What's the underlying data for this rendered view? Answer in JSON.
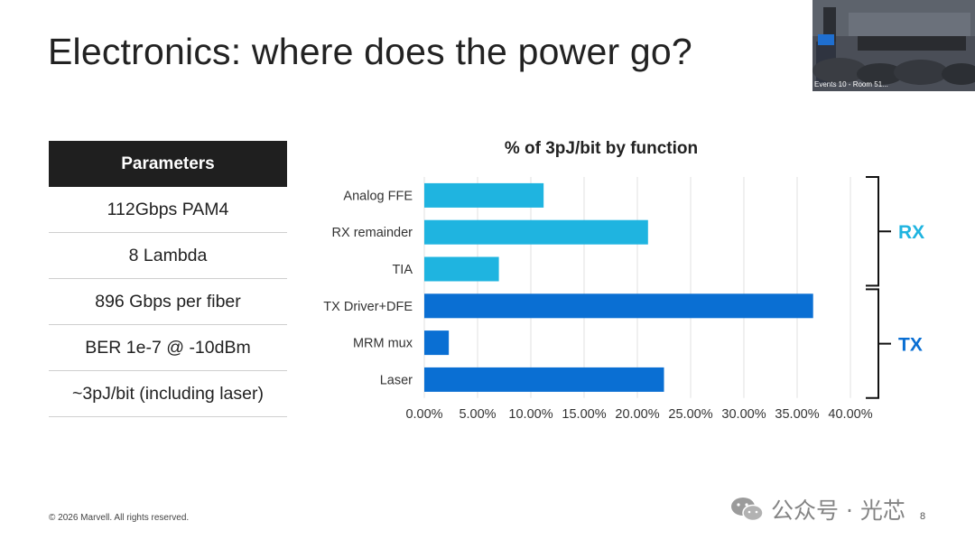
{
  "slide": {
    "title": "Electronics: where does the power go?",
    "footer": "© 2026 Marvell. All rights reserved.",
    "page_number": "8"
  },
  "video": {
    "caption": "Events 10 - Room 51..."
  },
  "parameters": {
    "header": "Parameters",
    "rows": [
      "112Gbps PAM4",
      "8 Lambda",
      "896 Gbps per fiber",
      "BER 1e-7 @ -10dBm",
      "~3pJ/bit (including laser)"
    ]
  },
  "watermark": {
    "text": "公众号 · 光芯",
    "icon": "wechat-icon"
  },
  "chart_data": {
    "type": "bar",
    "orientation": "horizontal",
    "title": "% of 3pJ/bit by function",
    "xlabel": "",
    "ylabel": "",
    "categories": [
      "Analog FFE",
      "RX remainder",
      "TIA",
      "TX Driver+DFE",
      "MRM mux",
      "Laser"
    ],
    "values": [
      11.2,
      21.0,
      7.0,
      36.5,
      2.3,
      22.5
    ],
    "xlim": [
      0,
      40
    ],
    "xticks": [
      "0.00%",
      "5.00%",
      "10.00%",
      "15.00%",
      "20.00%",
      "25.00%",
      "30.00%",
      "35.00%",
      "40.00%"
    ],
    "grid": true,
    "groups": [
      {
        "label": "RX",
        "categories": [
          "Analog FFE",
          "RX remainder",
          "TIA"
        ],
        "color": "#1fb4e0"
      },
      {
        "label": "TX",
        "categories": [
          "TX Driver+DFE",
          "MRM mux",
          "Laser"
        ],
        "color": "#0a6fd3"
      }
    ],
    "colors": {
      "rx": "#1fb4e0",
      "tx": "#0a6fd3"
    }
  }
}
